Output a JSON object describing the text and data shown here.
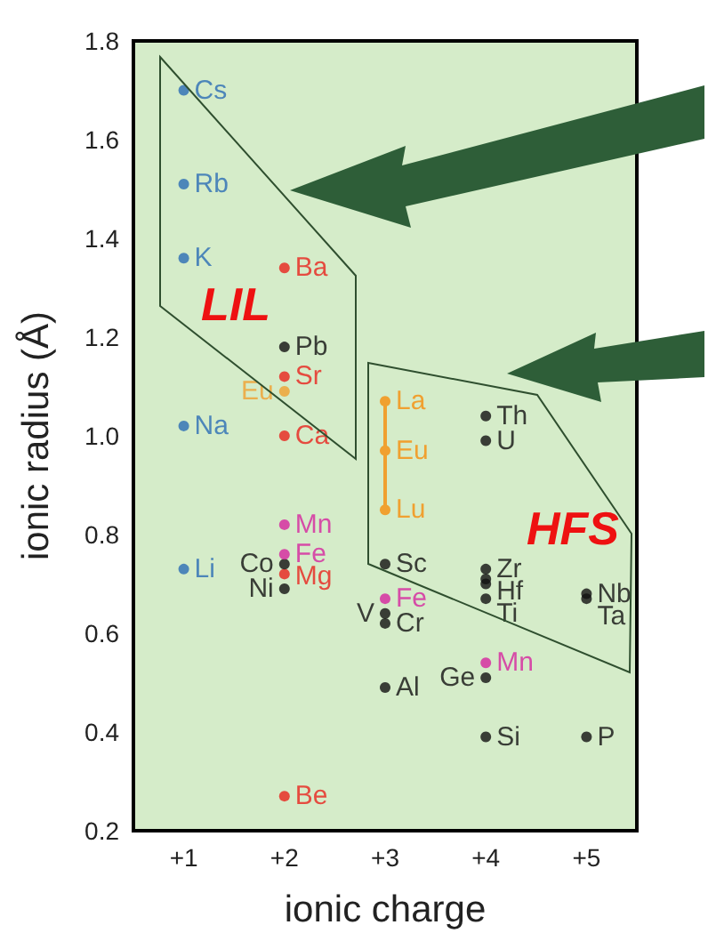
{
  "chart_data": {
    "type": "scatter",
    "xlabel": "ionic charge",
    "ylabel": "ionic radius (Å)",
    "categories": [
      "+1",
      "+2",
      "+3",
      "+4",
      "+5"
    ],
    "ylim": [
      0.2,
      1.8
    ],
    "yticks": [
      0.2,
      0.4,
      0.6,
      0.8,
      {
        "value": 1,
        "label": "1.0"
      },
      1.2,
      1.4,
      1.6,
      1.8
    ],
    "grid": false,
    "marker": "circle",
    "annotations": [
      "LIL",
      "HFS"
    ],
    "series": [
      {
        "color": "#2a6db5",
        "x": [
          "+1",
          "+1",
          "+1",
          "+1",
          "+1"
        ],
        "values": [
          1.7,
          1.51,
          1.36,
          1.02,
          0.73
        ],
        "value_labels": [
          "Cs",
          "Rb",
          "K",
          "Na",
          "Li"
        ]
      },
      {
        "color": "#e8231d",
        "x": [
          "+2",
          "+2",
          "+2",
          "+2",
          "+2"
        ],
        "values": [
          1.34,
          1.12,
          1.0,
          0.72,
          0.27
        ],
        "value_labels": [
          "Ba",
          "Sr",
          "Ca",
          "Mg",
          "Be"
        ]
      },
      {
        "color": "#111111",
        "x": [
          "+2",
          "+2",
          "+2",
          "+3",
          "+3",
          "+3",
          "+3",
          "+4",
          "+4",
          "+4",
          "+4",
          "+4",
          "+4",
          "+4",
          "+4",
          "+5",
          "+5",
          "+5"
        ],
        "values": [
          1.18,
          0.74,
          0.69,
          0.74,
          0.64,
          0.62,
          0.49,
          1.04,
          0.99,
          0.73,
          0.71,
          0.7,
          0.67,
          0.51,
          0.39,
          0.68,
          0.67,
          0.39
        ],
        "value_labels": [
          "Pb",
          "Co",
          "Ni",
          "Sc",
          "V",
          "Cr",
          "Al",
          "Th",
          "U",
          "Zr",
          "Hf",
          null,
          "Ti",
          "Ge",
          "Si",
          "Nb",
          "Ta",
          "P"
        ]
      },
      {
        "color": "#d6249f",
        "x": [
          "+2",
          "+2",
          "+3",
          "+4"
        ],
        "values": [
          0.82,
          0.76,
          0.67,
          0.54
        ],
        "value_labels": [
          "Mn",
          "Fe",
          "Fe",
          "Mn"
        ]
      },
      {
        "color": "#f0a030",
        "x": [
          "+2"
        ],
        "values": [
          1.09
        ],
        "value_labels": [
          "Eu"
        ]
      },
      {
        "type": "line",
        "color": "#f0a030",
        "x": [
          "+3",
          "+3",
          "+3"
        ],
        "values": [
          1.07,
          0.97,
          0.85
        ],
        "value_labels": [
          "La",
          "Eu",
          "Lu"
        ]
      }
    ]
  }
}
